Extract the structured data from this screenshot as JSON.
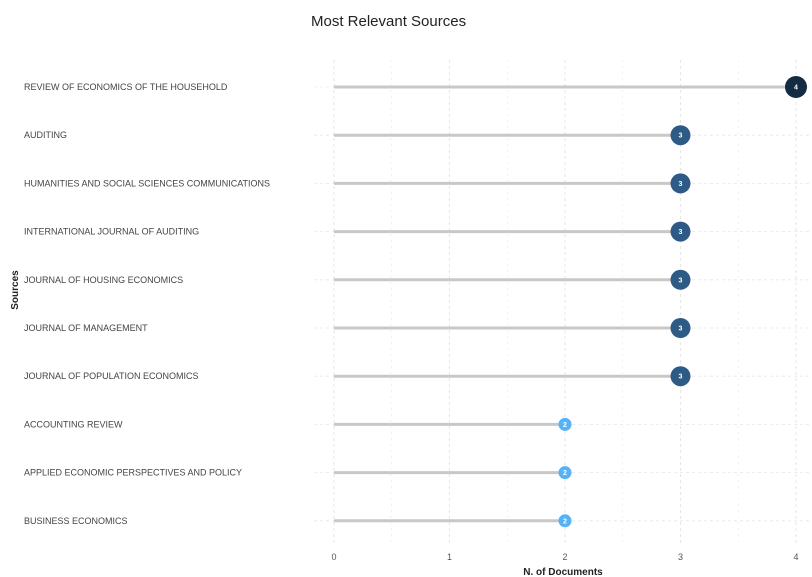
{
  "chart_data": {
    "type": "lollipop",
    "title": "Most Relevant Sources",
    "xlabel": "N. of Documents",
    "ylabel": "Sources",
    "xlim": [
      0,
      4
    ],
    "x_ticks": [
      "0",
      "1",
      "2",
      "3",
      "4"
    ],
    "grid": true,
    "categories": [
      "REVIEW OF ECONOMICS OF THE HOUSEHOLD",
      "AUDITING",
      "HUMANITIES AND SOCIAL SCIENCES COMMUNICATIONS",
      "INTERNATIONAL JOURNAL OF AUDITING",
      "JOURNAL OF HOUSING ECONOMICS",
      "JOURNAL OF MANAGEMENT",
      "JOURNAL OF POPULATION ECONOMICS",
      "ACCOUNTING REVIEW",
      "APPLIED ECONOMIC PERSPECTIVES AND POLICY",
      "BUSINESS ECONOMICS"
    ],
    "values": [
      4,
      3,
      3,
      3,
      3,
      3,
      3,
      2,
      2,
      2
    ],
    "point_labels": [
      "4",
      "3",
      "3",
      "3",
      "3",
      "3",
      "3",
      "2",
      "2",
      "2"
    ],
    "colors": {
      "4": "#132b43",
      "3": "#2e5b85",
      "2": "#56b1f7",
      "stem": "#c8c8c8",
      "grid": "#e6e6e6"
    }
  }
}
